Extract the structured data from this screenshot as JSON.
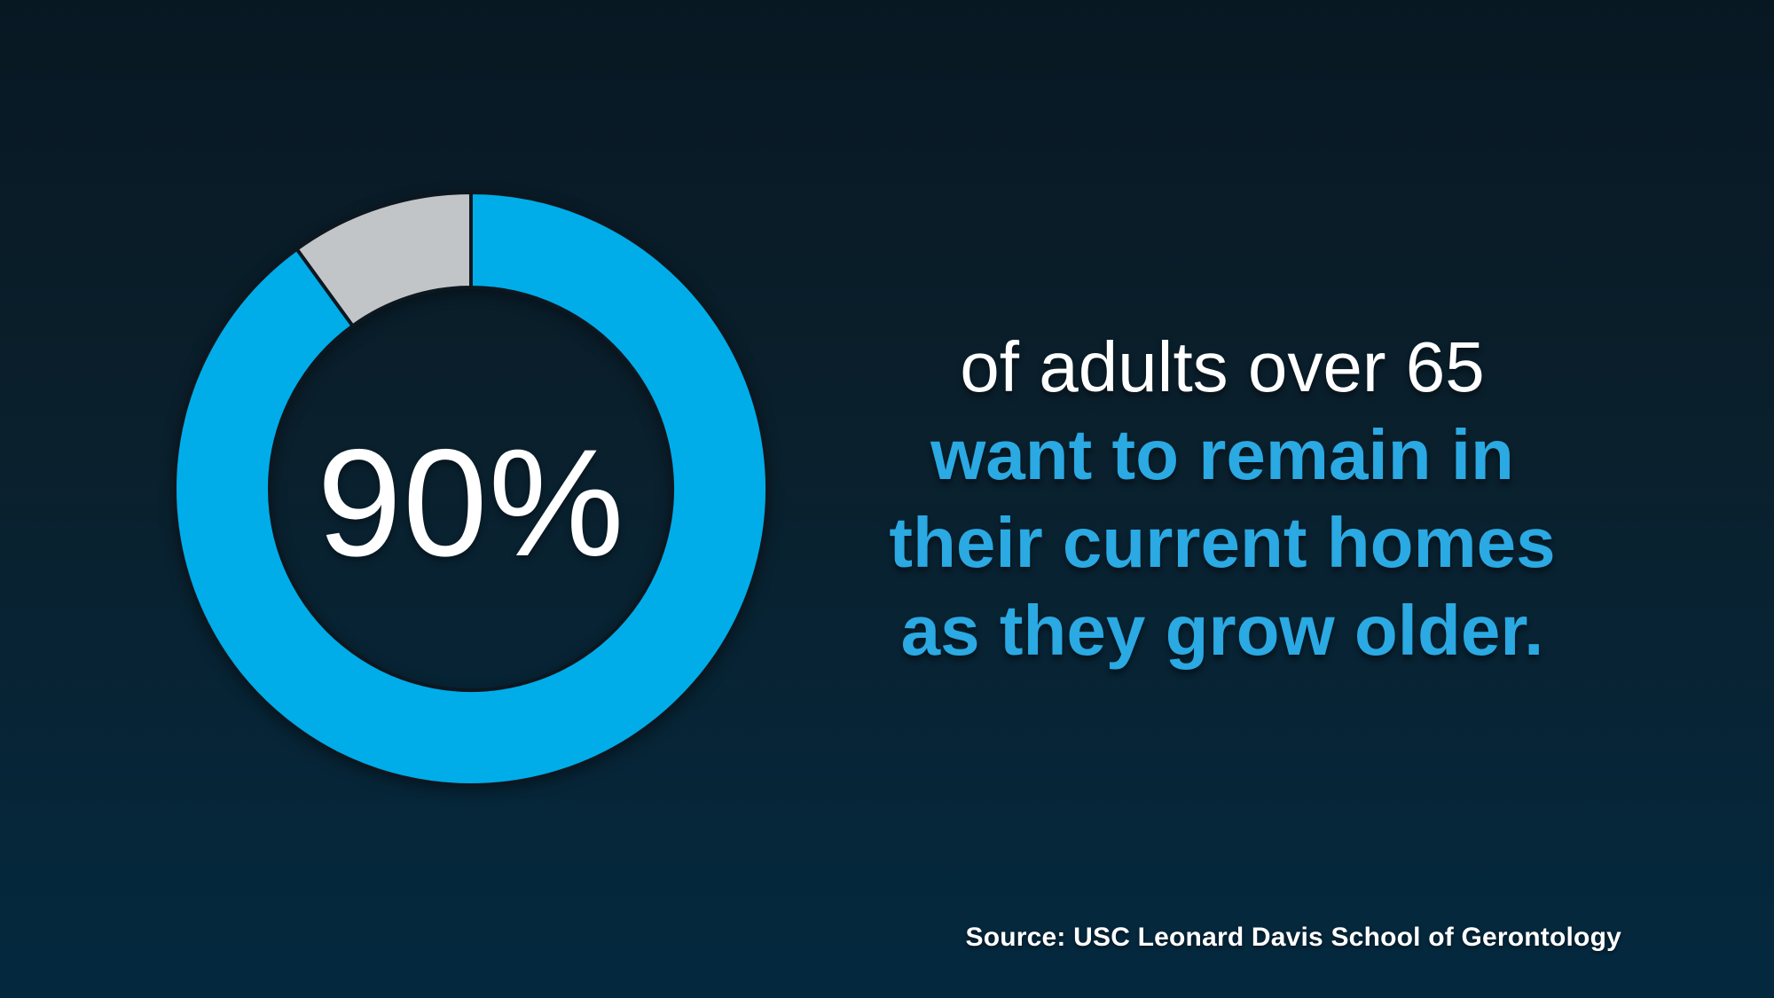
{
  "infographic": {
    "stat_value": "90%",
    "headline": {
      "line1": "of adults over 65",
      "line2": "want to remain in",
      "line3": "their current homes",
      "line4": "as they grow older."
    },
    "source_text": "Source: USC Leonard Davis School of Gerontology"
  },
  "chart_data": {
    "type": "pie",
    "subtype": "donut",
    "title": "90% of adults over 65 want to remain in their current homes as they grow older.",
    "center_label": "90%",
    "start_angle": "top",
    "direction": "clockwise",
    "inner_radius_ratio": 0.68,
    "legend": false,
    "slices": [
      {
        "label": "Want to remain in their current homes",
        "value": 90,
        "color": "#00ADE9"
      },
      {
        "label": "Other",
        "value": 10,
        "color": "#C2C5C7"
      }
    ]
  },
  "colors": {
    "background_top": "#081823",
    "background_bottom": "#04293F",
    "accent_blue": "#00ADE9",
    "text_blue": "#2BA9E2",
    "neutral_gray": "#C2C5C7",
    "white": "#FFFFFF",
    "donut_outline": "#0D1720"
  }
}
